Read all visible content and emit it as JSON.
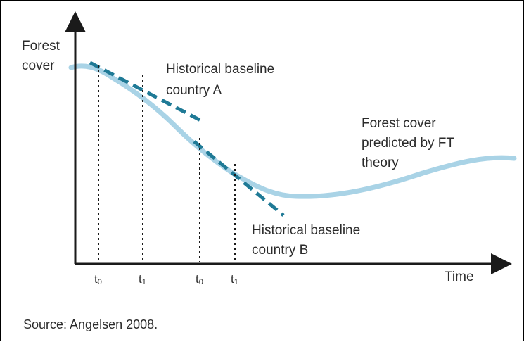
{
  "diagram": {
    "y_axis_label_line1": "Forest",
    "y_axis_label_line2": "cover",
    "x_axis_label": "Time",
    "label_baseline_a_line1": "Historical baseline",
    "label_baseline_a_line2": "country A",
    "label_curve_line1": "Forest cover",
    "label_curve_line2": "predicted by FT",
    "label_curve_line3": "theory",
    "label_baseline_b_line1": "Historical baseline",
    "label_baseline_b_line2": "country B",
    "ticks": [
      {
        "base": "t",
        "sub": "0"
      },
      {
        "base": "t",
        "sub": "1"
      },
      {
        "base": "t",
        "sub": "0"
      },
      {
        "base": "t",
        "sub": "1"
      }
    ],
    "source": "Source: Angelsen 2008."
  },
  "colors": {
    "curve": "#a9d3e6",
    "baseline": "#1f7a96",
    "axis": "#1a1a1a",
    "text": "#2b2b2b"
  }
}
